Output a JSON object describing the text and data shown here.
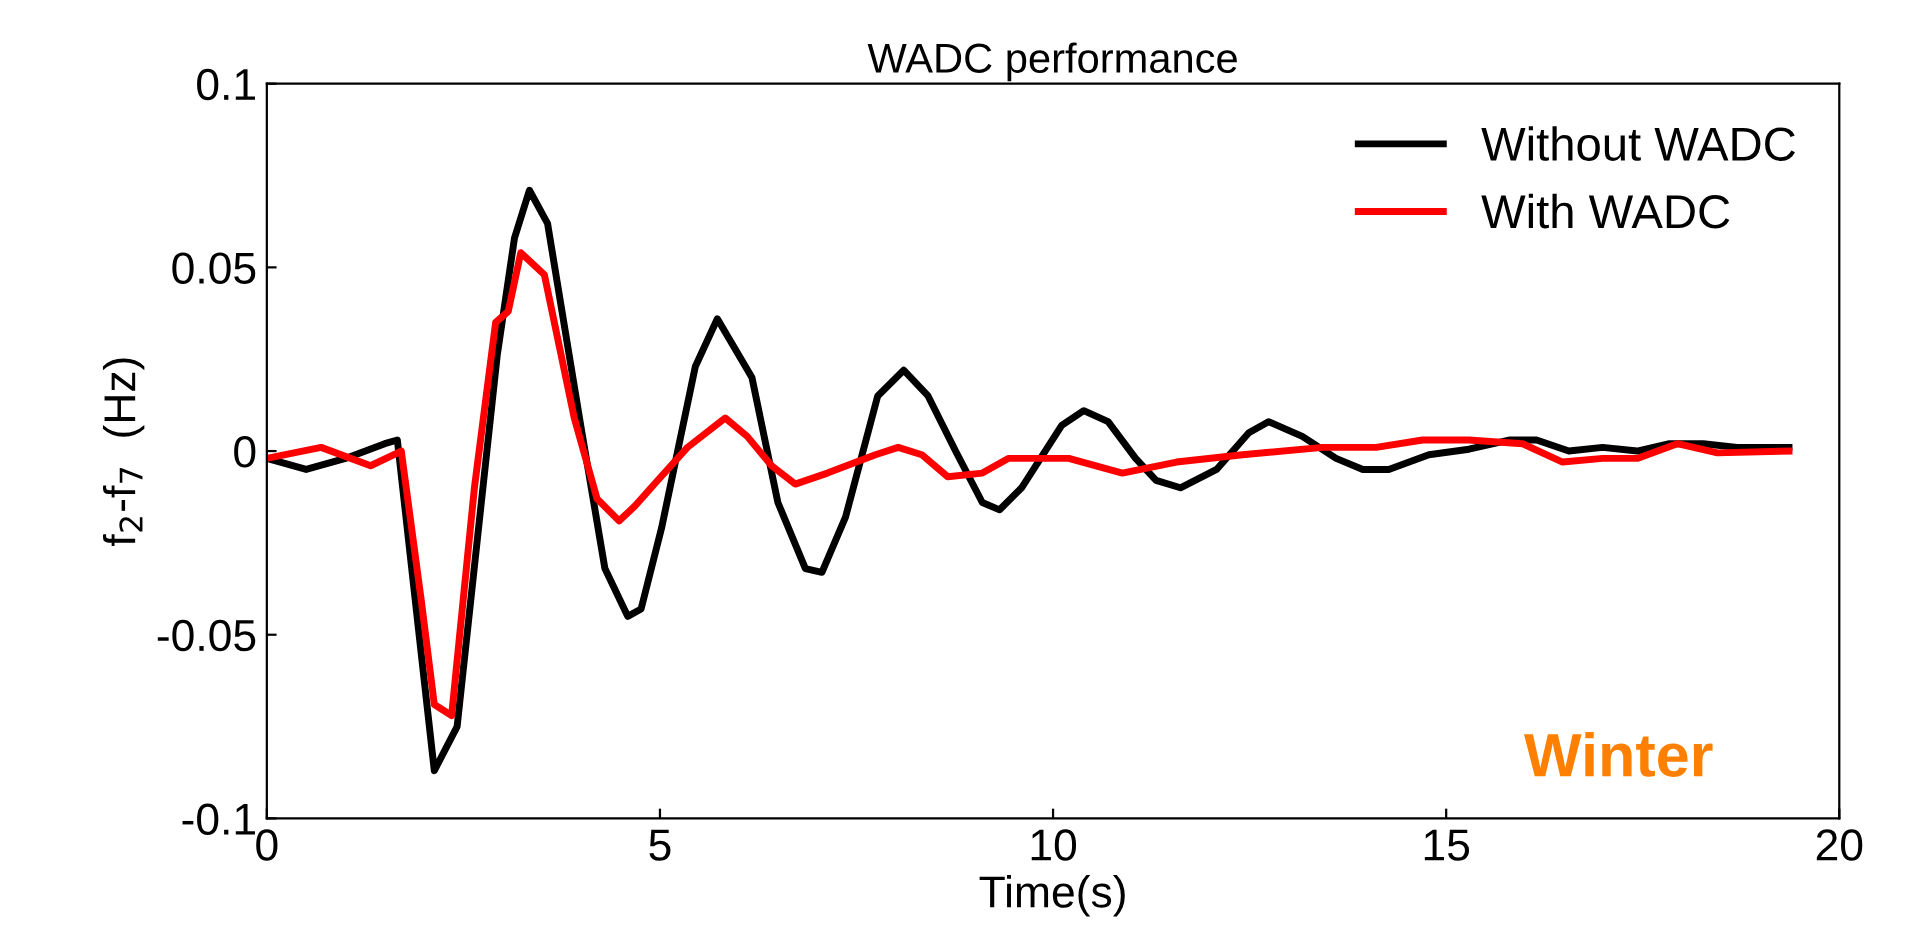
{
  "chart_data": {
    "type": "line",
    "title": "WADC performance",
    "xlabel": "Time(s)",
    "ylabel": "f$_{2}$-f$_{7}$  (Hz)",
    "xlim": [
      0,
      20
    ],
    "ylim": [
      -0.1,
      0.1
    ],
    "xticks": [
      0,
      5,
      10,
      15,
      20
    ],
    "yticks": [
      -0.1,
      -0.05,
      0,
      0.05,
      0.1
    ],
    "grid": false,
    "legend": "top right",
    "marker": "none",
    "line_style": "solid",
    "annotations": [
      "Winter"
    ],
    "series": [
      {
        "name": "Without WADC",
        "color": "#000000",
        "x": [
          0,
          0.5,
          1.0,
          1.5,
          1.66,
          2.13,
          2.42,
          2.93,
          3.15,
          3.34,
          3.57,
          4.0,
          4.3,
          4.59,
          4.76,
          5.02,
          5.45,
          5.73,
          6.17,
          6.5,
          6.85,
          7.06,
          7.36,
          7.77,
          8.1,
          8.41,
          8.76,
          9.1,
          9.32,
          9.6,
          10.11,
          10.39,
          10.7,
          11.05,
          11.31,
          11.62,
          12.08,
          12.49,
          12.74,
          13.17,
          13.6,
          13.94,
          14.27,
          14.78,
          15.29,
          15.8,
          16.15,
          16.56,
          16.99,
          17.43,
          17.84,
          18.27,
          18.7,
          19.36
        ],
        "values": [
          -0.002,
          -0.005,
          -0.002,
          0.002,
          0.003,
          -0.087,
          -0.075,
          0.026,
          0.058,
          0.071,
          0.062,
          0.006,
          -0.032,
          -0.045,
          -0.043,
          -0.021,
          0.023,
          0.036,
          0.02,
          -0.014,
          -0.032,
          -0.033,
          -0.018,
          0.015,
          0.022,
          0.015,
          0.0,
          -0.014,
          -0.016,
          -0.01,
          0.007,
          0.011,
          0.008,
          -0.002,
          -0.008,
          -0.01,
          -0.005,
          0.005,
          0.008,
          0.004,
          -0.002,
          -0.005,
          -0.005,
          -0.001,
          0.0005,
          0.003,
          0.003,
          0.0,
          0.001,
          0.0,
          0.002,
          0.002,
          0.001,
          0.001
        ]
      },
      {
        "name": "With WADC",
        "color": "#ff0000",
        "x": [
          0,
          0.69,
          1.32,
          1.71,
          1.96,
          2.13,
          2.35,
          2.64,
          2.91,
          3.07,
          3.23,
          3.53,
          3.91,
          4.2,
          4.48,
          4.68,
          4.97,
          5.35,
          5.83,
          6.11,
          6.42,
          6.72,
          7.13,
          7.74,
          8.03,
          8.33,
          8.66,
          9.1,
          9.43,
          10.2,
          10.88,
          11.57,
          12.41,
          13.43,
          14.11,
          14.7,
          15.29,
          15.97,
          16.48,
          16.99,
          17.43,
          17.94,
          18.45,
          19.36
        ],
        "values": [
          -0.002,
          0.001,
          -0.004,
          0.0,
          -0.04,
          -0.069,
          -0.072,
          -0.01,
          0.035,
          0.038,
          0.054,
          0.048,
          0.009,
          -0.013,
          -0.019,
          -0.015,
          -0.008,
          0.001,
          0.009,
          0.004,
          -0.004,
          -0.009,
          -0.006,
          -0.001,
          0.001,
          -0.001,
          -0.007,
          -0.006,
          -0.002,
          -0.002,
          -0.006,
          -0.003,
          -0.001,
          0.001,
          0.001,
          0.003,
          0.003,
          0.002,
          -0.003,
          -0.002,
          -0.002,
          0.002,
          -0.0005,
          0.0
        ]
      }
    ]
  }
}
